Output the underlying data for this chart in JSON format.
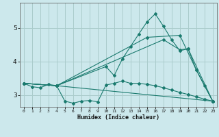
{
  "xlabel": "Humidex (Indice chaleur)",
  "background_color": "#cce8ec",
  "grid_color": "#aacccc",
  "line_color": "#1a7a6e",
  "xlim": [
    -0.5,
    23.5
  ],
  "ylim": [
    2.65,
    5.75
  ],
  "yticks": [
    3,
    4,
    5
  ],
  "xticks": [
    0,
    1,
    2,
    3,
    4,
    5,
    6,
    7,
    8,
    9,
    10,
    11,
    12,
    13,
    14,
    15,
    16,
    17,
    18,
    19,
    20,
    21,
    22,
    23
  ],
  "series": [
    {
      "x": [
        0,
        1,
        2,
        3,
        4,
        5,
        6,
        7,
        8,
        9,
        10,
        11,
        12,
        13,
        14,
        15,
        16,
        17,
        18,
        19,
        20,
        21,
        22,
        23
      ],
      "y": [
        3.35,
        3.25,
        3.22,
        3.32,
        3.28,
        2.82,
        2.76,
        2.82,
        2.84,
        2.8,
        3.3,
        3.35,
        3.42,
        3.35,
        3.35,
        3.32,
        3.28,
        3.22,
        3.15,
        3.08,
        3.02,
        2.95,
        2.88,
        2.82
      ]
    },
    {
      "x": [
        0,
        4,
        10,
        11,
        12,
        13,
        14,
        15,
        16,
        17,
        18,
        19,
        20,
        21,
        22,
        23
      ],
      "y": [
        3.35,
        3.28,
        3.85,
        3.58,
        4.08,
        4.45,
        4.82,
        5.18,
        5.42,
        5.05,
        4.65,
        4.32,
        4.38,
        3.75,
        3.28,
        2.82
      ]
    },
    {
      "x": [
        0,
        4,
        23
      ],
      "y": [
        3.35,
        3.28,
        2.82
      ]
    },
    {
      "x": [
        0,
        4,
        15,
        19,
        21,
        23
      ],
      "y": [
        3.35,
        3.28,
        4.72,
        4.78,
        3.75,
        2.82
      ]
    },
    {
      "x": [
        0,
        4,
        17,
        19,
        20,
        23
      ],
      "y": [
        3.35,
        3.28,
        4.65,
        4.35,
        4.38,
        2.82
      ]
    }
  ]
}
